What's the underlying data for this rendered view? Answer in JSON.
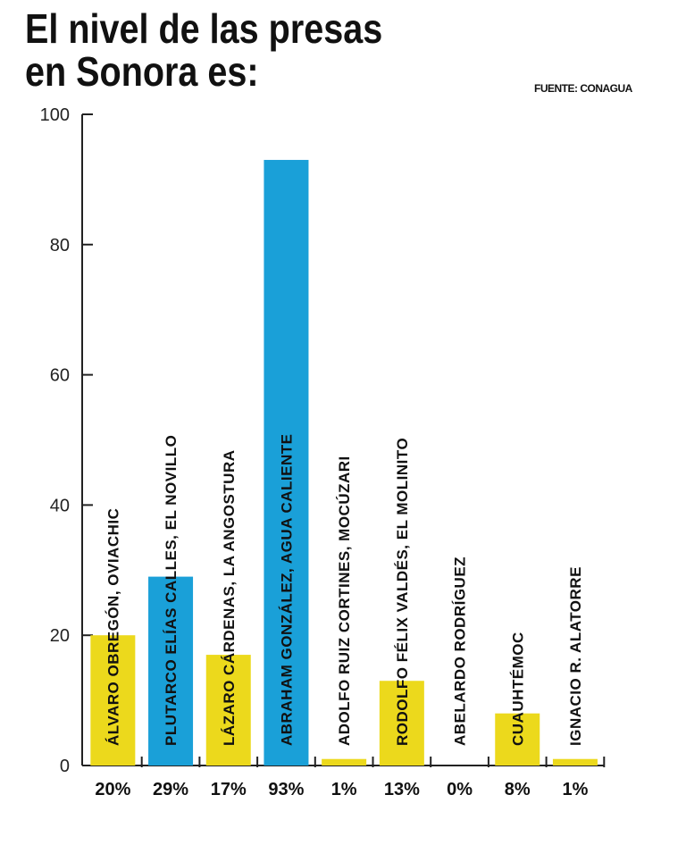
{
  "title": {
    "line1": "El nivel de las presas",
    "line2": "en Sonora es:"
  },
  "source": "FUENTE: CONAGUA",
  "colors": {
    "yellow": "#ecd91c",
    "blue": "#1aa0d8",
    "axis": "#222222"
  },
  "chart_data": {
    "type": "bar",
    "title": "El nivel de las presas en Sonora es:",
    "xlabel": "",
    "ylabel": "",
    "ylim": [
      0,
      100
    ],
    "yticks": [
      0,
      20,
      40,
      60,
      80,
      100
    ],
    "grid": false,
    "legend": "none",
    "categories": [
      "ÁLVARO OBREGÓN, OVIACHIC",
      "PLUTARCO ELÍAS CALLES, EL NOVILLO",
      "LÁZARO CÁRDENAS, LA ANGOSTURA",
      "ABRAHAM GONZÁLEZ, AGUA CALIENTE",
      "ADOLFO RUIZ CORTINES, MOCÚZARI",
      "RODOLFO FÉLIX VALDÉS, EL MOLINITO",
      "ABELARDO RODRÍGUEZ",
      "CUAUHTÉMOC",
      "IGNACIO R. ALATORRE"
    ],
    "values": [
      20,
      29,
      17,
      93,
      1,
      13,
      0,
      8,
      1
    ],
    "value_labels": [
      "20%",
      "29%",
      "17%",
      "93%",
      "1%",
      "13%",
      "0%",
      "8%",
      "1%"
    ],
    "bar_colors": [
      "yellow",
      "blue",
      "yellow",
      "blue",
      "yellow",
      "yellow",
      "yellow",
      "yellow",
      "yellow"
    ]
  }
}
